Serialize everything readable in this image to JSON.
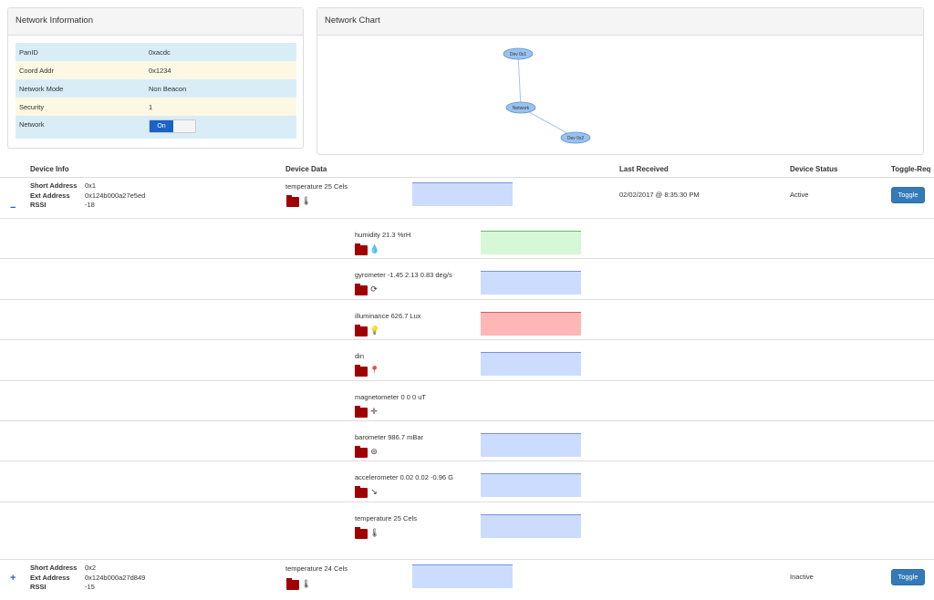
{
  "network_info": {
    "title": "Network Information",
    "rows": [
      {
        "label": "PanID",
        "value": "0xacdc"
      },
      {
        "label": "Coord Addr",
        "value": "0x1234"
      },
      {
        "label": "Network Mode",
        "value": "Non Beacon"
      },
      {
        "label": "Security",
        "value": "1"
      },
      {
        "label": "Network",
        "switch_label": "On"
      }
    ]
  },
  "network_chart": {
    "title": "Network Chart",
    "nodes": [
      "Dev 0x1",
      "Network",
      "Dev 0x2"
    ]
  },
  "table": {
    "headers": [
      "Device Info",
      "Device Data",
      "Last Received",
      "Device Status",
      "Toggle-Req"
    ]
  },
  "labels": {
    "short_address": "Short Address",
    "ext_address": "Ext Address",
    "rssi": "RSSI"
  },
  "devices": [
    {
      "expand_symbol": "−",
      "short_address": "0x1",
      "ext_address": "0x124b000a27e5ed",
      "rssi": "-18",
      "reading": "temperature 25 Cels",
      "last_received": "02/02/2017 @ 8:35:30 PM",
      "status": "Active",
      "toggle_label": "Toggle",
      "sensors": [
        {
          "reading": "humidity 21.3 %rH",
          "icon": "water-drops-icon",
          "chart": "green"
        },
        {
          "reading": "gyrometer -1.45 2.13 0.83 deg/s",
          "icon": "gyro-icon",
          "chart": "blue"
        },
        {
          "reading": "illuminance 626.7 Lux",
          "icon": "light-bulb-icon",
          "chart": "red"
        },
        {
          "reading": "din",
          "icon": "pin-icon",
          "chart": "blue"
        },
        {
          "reading": "magnetometer 0 0 0 uT",
          "icon": "compass-icon",
          "chart": "none"
        },
        {
          "reading": "barometer 986.7 mBar",
          "icon": "barometer-icon",
          "chart": "blue"
        },
        {
          "reading": "accelerometer 0.02 0.02 -0.96 G",
          "icon": "accelerometer-icon",
          "chart": "blue"
        },
        {
          "reading": "temperature 25 Cels",
          "icon": "thermometer-icon",
          "chart": "blue"
        }
      ]
    },
    {
      "expand_symbol": "+",
      "short_address": "0x2",
      "ext_address": "0x124b000a27d849",
      "rssi": "-15",
      "reading": "temperature 24 Cels",
      "last_received": "",
      "status": "Inactive",
      "toggle_label": "Toggle"
    }
  ]
}
